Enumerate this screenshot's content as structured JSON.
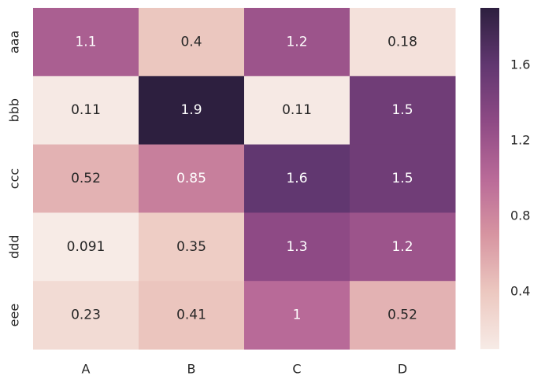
{
  "chart_data": {
    "type": "heatmap",
    "title": "",
    "xlabel": "",
    "ylabel": "",
    "x_categories": [
      "A",
      "B",
      "C",
      "D"
    ],
    "y_categories": [
      "aaa",
      "bbb",
      "ccc",
      "ddd",
      "eee"
    ],
    "values": [
      [
        1.1,
        0.4,
        1.2,
        0.18
      ],
      [
        0.11,
        1.9,
        0.11,
        1.5
      ],
      [
        0.52,
        0.85,
        1.6,
        1.5
      ],
      [
        0.091,
        0.35,
        1.3,
        1.2
      ],
      [
        0.23,
        0.41,
        1.0,
        0.52
      ]
    ],
    "value_labels": [
      [
        "1.1",
        "0.4",
        "1.2",
        "0.18"
      ],
      [
        "0.11",
        "1.9",
        "0.11",
        "1.5"
      ],
      [
        "0.52",
        "0.85",
        "1.6",
        "1.5"
      ],
      [
        "0.091",
        "0.35",
        "1.3",
        "1.2"
      ],
      [
        "0.23",
        "0.41",
        "1",
        "0.52"
      ]
    ],
    "colorbar": {
      "range": [
        0.091,
        1.9
      ],
      "ticks": [
        0.4,
        0.8,
        1.2,
        1.6
      ],
      "tick_labels": [
        "0.4",
        "0.8",
        "1.2",
        "1.6"
      ]
    },
    "colormap": {
      "stops": [
        "#f7ebe6",
        "#ecc8c0",
        "#d795a1",
        "#b96a98",
        "#8e4a85",
        "#613770",
        "#2d1f3f"
      ],
      "light_text_color": "#ffffff",
      "dark_text_color": "#262626",
      "text_threshold": 0.8
    },
    "grid": false,
    "legend": "colorbar-right"
  }
}
